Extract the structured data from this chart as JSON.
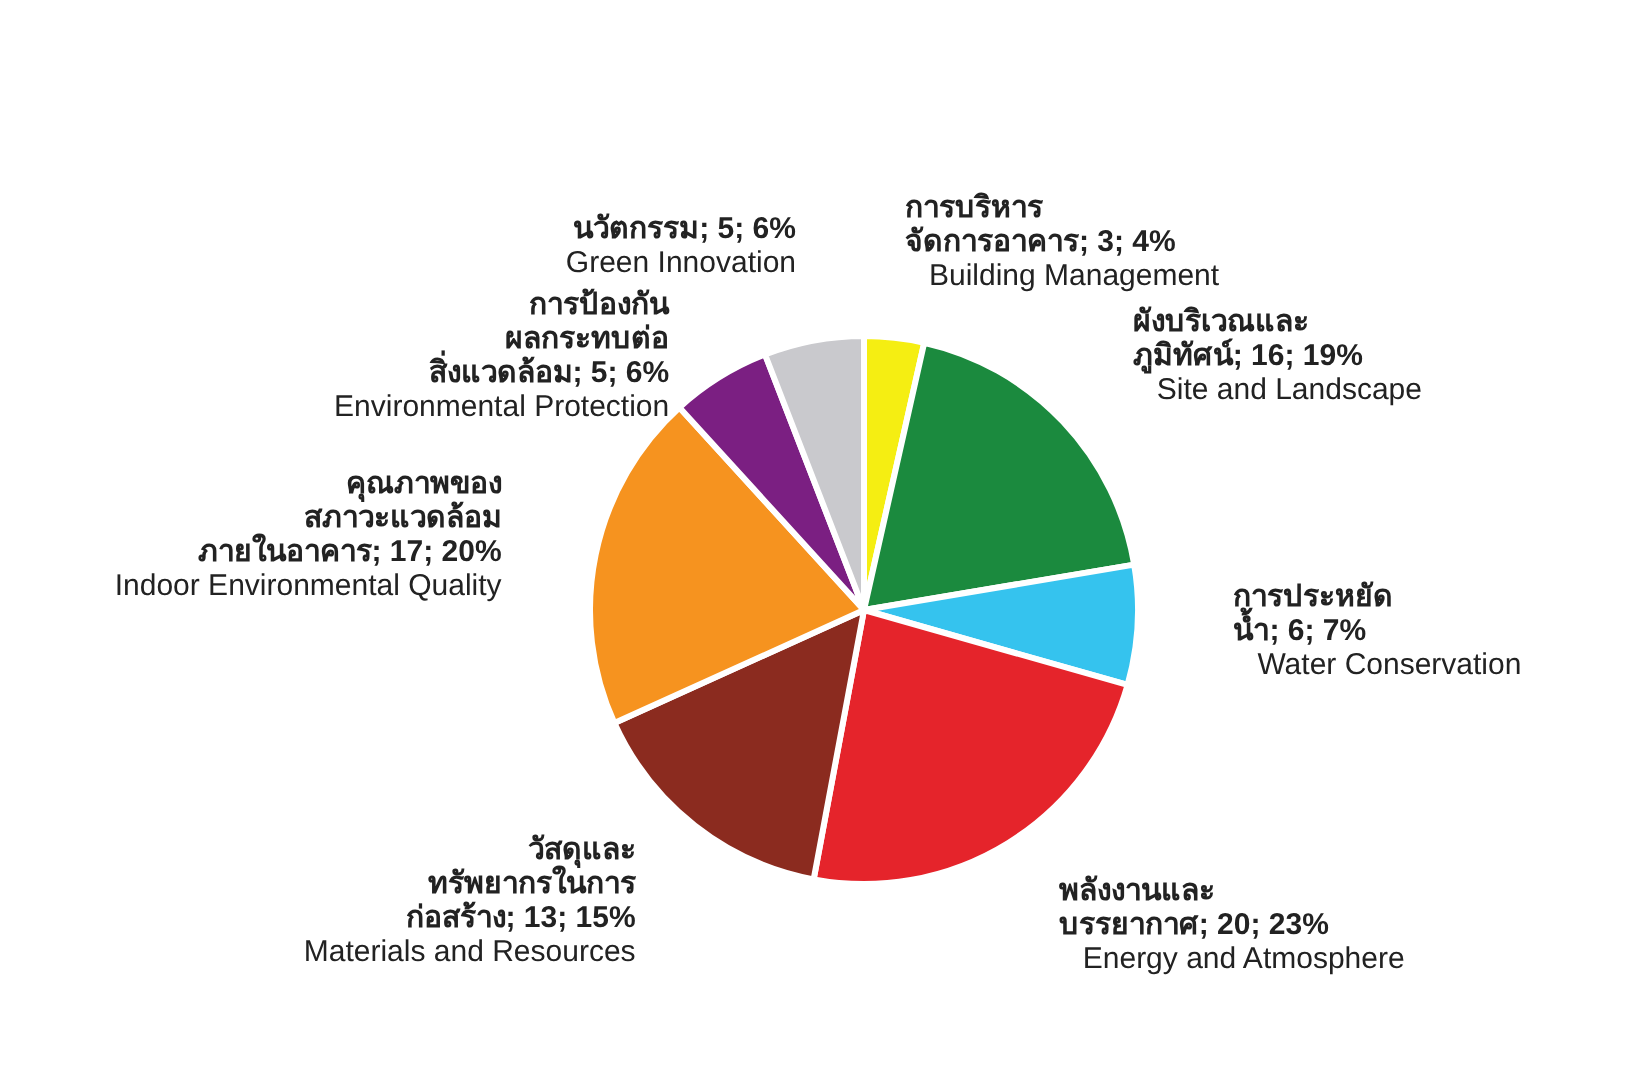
{
  "chart_data": {
    "type": "pie",
    "categories": [
      "การบริหาร\nจัดการอาคาร",
      "ผังบริเวณและ\nภูมิทัศน์",
      "การประหยัด\nน้ำ",
      "พลังงานและ\nบรรยากาศ",
      "วัสดุและ\nทรัพยากรในการ\nก่อสร้าง",
      "คุณภาพของ\nสภาวะแวดล้อม\nภายในอาคาร",
      "การป้องกัน\nผลกระทบต่อ\nสิ่งแวดล้อม",
      "นวัตกรรม"
    ],
    "values": [
      3,
      16,
      6,
      20,
      13,
      17,
      5,
      5
    ],
    "colors": [
      "#f5ee12",
      "#1b8a3e",
      "#35c3ee",
      "#e5242b",
      "#8b2b1f",
      "#f6931f",
      "#7b1f82",
      "#c9c9cd"
    ],
    "value_labels": [
      "3; 4%",
      "16; 19%",
      "6; 7%",
      "20; 23%",
      "13; 15%",
      "17; 20%",
      "5; 6%",
      "5; 6%"
    ],
    "annotations": [
      {
        "text": "Building Management",
        "x": "การบริหาร\nจัดการอาคาร"
      },
      {
        "text": "Site and Landscape",
        "x": "ผังบริเวณและ\nภูมิทัศน์"
      },
      {
        "text": "Water Conservation",
        "x": "การประหยัด\nน้ำ"
      },
      {
        "text": "Energy and Atmosphere",
        "x": "พลังงานและ\nบรรยากาศ"
      },
      {
        "text": "Materials and Resources",
        "x": "วัสดุและ\nทรัพยากรในการ\nก่อสร้าง"
      },
      {
        "text": "Indoor Environmental Quality",
        "x": "คุณภาพของ\nสภาวะแวดล้อม\nภายในอาคาร"
      },
      {
        "text": "Environmental Protection",
        "x": "การป้องกัน\nผลกระทบต่อ\nสิ่งแวดล้อม"
      },
      {
        "text": "Green Innovation",
        "x": "นวัตกรรม"
      }
    ]
  }
}
